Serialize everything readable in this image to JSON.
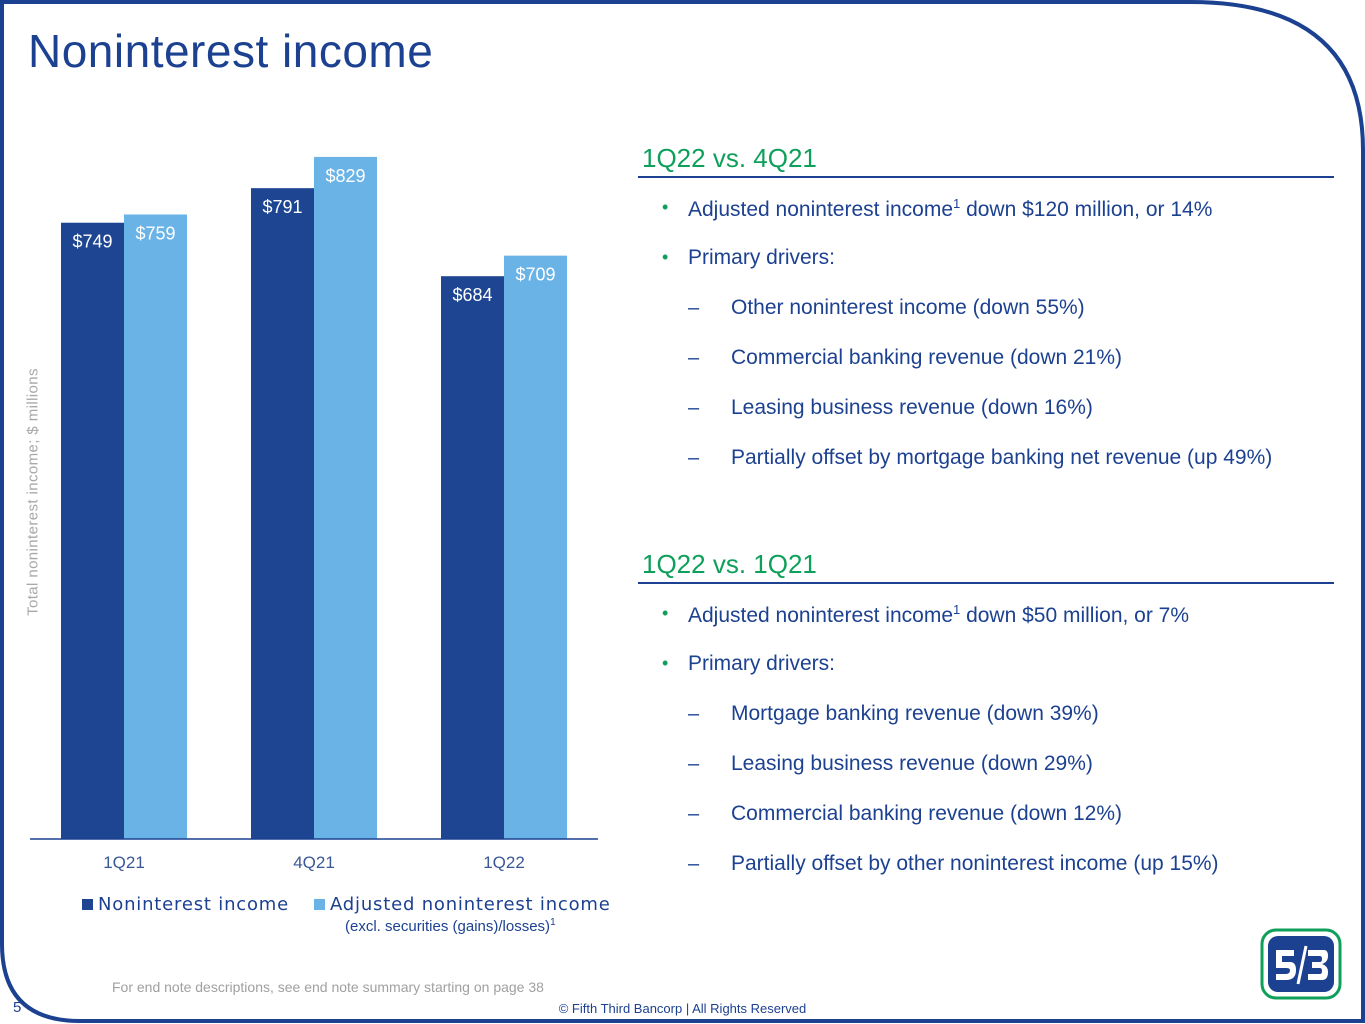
{
  "title": "Noninterest income",
  "page_number": "5",
  "colors": {
    "navy": "#1c4190",
    "dark_bar": "#1e4591",
    "light_bar": "#69b3e7",
    "accent_green": "#0ea05a"
  },
  "chart_data": {
    "type": "bar",
    "categories": [
      "1Q21",
      "4Q21",
      "1Q22"
    ],
    "series": [
      {
        "name": "Noninterest income",
        "values": [
          749,
          791,
          684
        ],
        "labels": [
          "$749",
          "$791",
          "$684"
        ],
        "color": "#1e4591"
      },
      {
        "name": "Adjusted noninterest income",
        "values": [
          759,
          829,
          709
        ],
        "labels": [
          "$759",
          "$829",
          "$709"
        ],
        "color": "#69b3e7"
      }
    ],
    "ylabel": "Total noninterest income; $ millions",
    "ylim": [
      0,
      900
    ],
    "grid": false,
    "legend_position": "bottom",
    "legend_note": "(excl. securities (gains)/losses)",
    "legend_note_sup": "1"
  },
  "sections": [
    {
      "heading": "1Q22 vs. 4Q21",
      "items": [
        {
          "level": "bullet",
          "pre": "Adjusted noninterest income",
          "sup": "1",
          "post": " down $120 million, or 14%"
        },
        {
          "level": "bullet",
          "pre": "Primary drivers:",
          "sup": "",
          "post": ""
        },
        {
          "level": "dash",
          "pre": "Other noninterest income (down 55%)",
          "sup": "",
          "post": ""
        },
        {
          "level": "dash",
          "pre": "Commercial banking revenue (down 21%)",
          "sup": "",
          "post": ""
        },
        {
          "level": "dash",
          "pre": "Leasing business revenue (down 16%)",
          "sup": "",
          "post": ""
        },
        {
          "level": "dash",
          "pre": "Partially offset by mortgage banking net revenue (up 49%)",
          "sup": "",
          "post": ""
        }
      ]
    },
    {
      "heading": "1Q22 vs. 1Q21",
      "items": [
        {
          "level": "bullet",
          "pre": "Adjusted noninterest income",
          "sup": "1",
          "post": " down $50 million, or 7%"
        },
        {
          "level": "bullet",
          "pre": "Primary drivers:",
          "sup": "",
          "post": ""
        },
        {
          "level": "dash",
          "pre": "Mortgage banking revenue (down 39%)",
          "sup": "",
          "post": ""
        },
        {
          "level": "dash",
          "pre": "Leasing business revenue (down 29%)",
          "sup": "",
          "post": ""
        },
        {
          "level": "dash",
          "pre": "Commercial banking revenue (down 12%)",
          "sup": "",
          "post": ""
        },
        {
          "level": "dash",
          "pre": "Partially offset by other noninterest income (up 15%)",
          "sup": "",
          "post": ""
        }
      ]
    }
  ],
  "markers": {
    "bullet": "•",
    "dash": "–"
  },
  "footer": {
    "endnote": "For end note descriptions, see end note summary starting on page 38",
    "copyright": "© Fifth Third Bancorp | All Rights Reserved"
  },
  "logo": {
    "icon": "fifth-third-logo-icon"
  }
}
